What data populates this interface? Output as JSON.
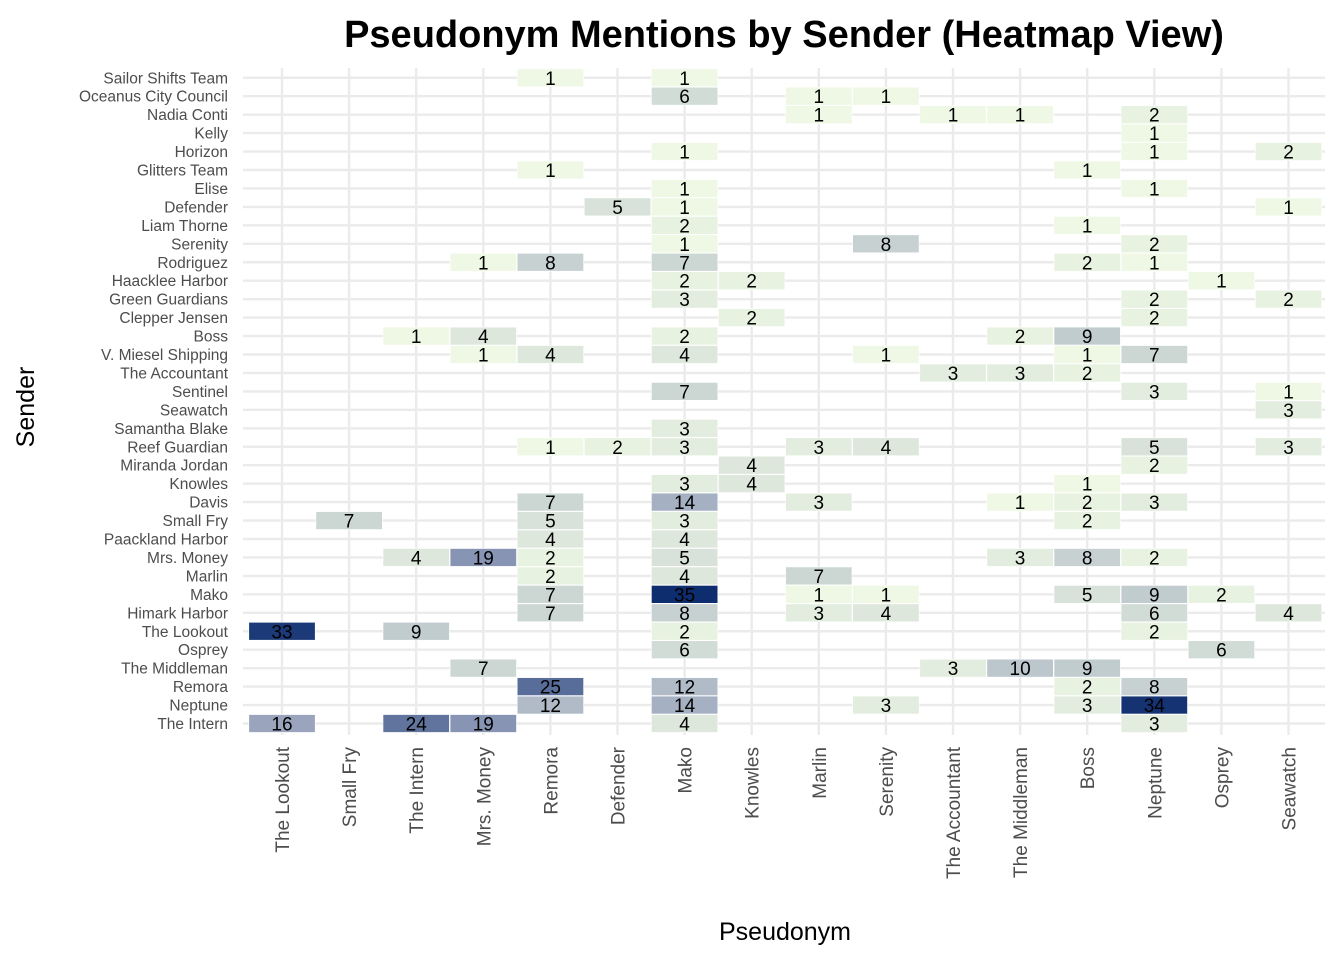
{
  "chart_data": {
    "type": "heatmap",
    "title": "Pseudonym Mentions by Sender (Heatmap View)",
    "xlabel": "Pseudonym",
    "ylabel": "Sender",
    "grid": true,
    "legend": "none",
    "x_categories": [
      "The Lookout",
      "Small Fry",
      "The Intern",
      "Mrs. Money",
      "Remora",
      "Defender",
      "Mako",
      "Knowles",
      "Marlin",
      "Serenity",
      "The Accountant",
      "The Middleman",
      "Boss",
      "Neptune",
      "Osprey",
      "Seawatch"
    ],
    "y_categories": [
      "The Intern",
      "Neptune",
      "Remora",
      "The Middleman",
      "Osprey",
      "The Lookout",
      "Himark Harbor",
      "Mako",
      "Marlin",
      "Mrs. Money",
      "Paackland Harbor",
      "Small Fry",
      "Davis",
      "Knowles",
      "Miranda Jordan",
      "Reef Guardian",
      "Samantha Blake",
      "Seawatch",
      "Sentinel",
      "The Accountant",
      "V. Miesel Shipping",
      "Boss",
      "Clepper Jensen",
      "Green Guardians",
      "Haacklee Harbor",
      "Rodriguez",
      "Serenity",
      "Liam Thorne",
      "Defender",
      "Elise",
      "Glitters Team",
      "Horizon",
      "Kelly",
      "Nadia Conti",
      "Oceanus City Council",
      "Sailor Shifts Team"
    ],
    "color_scale": {
      "low": "#eef8e4",
      "mid": "#8f9ab8",
      "high": "#0d2d6e",
      "max_value": 35
    },
    "cells": [
      {
        "sender": "The Intern",
        "pseudonym": "The Lookout",
        "value": 16
      },
      {
        "sender": "The Intern",
        "pseudonym": "The Intern",
        "value": 24
      },
      {
        "sender": "The Intern",
        "pseudonym": "Mrs. Money",
        "value": 19
      },
      {
        "sender": "The Intern",
        "pseudonym": "Mako",
        "value": 4
      },
      {
        "sender": "The Intern",
        "pseudonym": "Neptune",
        "value": 3
      },
      {
        "sender": "Neptune",
        "pseudonym": "Remora",
        "value": 12
      },
      {
        "sender": "Neptune",
        "pseudonym": "Mako",
        "value": 14
      },
      {
        "sender": "Neptune",
        "pseudonym": "Serenity",
        "value": 3
      },
      {
        "sender": "Neptune",
        "pseudonym": "Boss",
        "value": 3
      },
      {
        "sender": "Neptune",
        "pseudonym": "Neptune",
        "value": 34
      },
      {
        "sender": "Remora",
        "pseudonym": "Remora",
        "value": 25
      },
      {
        "sender": "Remora",
        "pseudonym": "Mako",
        "value": 12
      },
      {
        "sender": "Remora",
        "pseudonym": "Boss",
        "value": 2
      },
      {
        "sender": "Remora",
        "pseudonym": "Neptune",
        "value": 8
      },
      {
        "sender": "The Middleman",
        "pseudonym": "Mrs. Money",
        "value": 7
      },
      {
        "sender": "The Middleman",
        "pseudonym": "The Accountant",
        "value": 3
      },
      {
        "sender": "The Middleman",
        "pseudonym": "The Middleman",
        "value": 10
      },
      {
        "sender": "The Middleman",
        "pseudonym": "Boss",
        "value": 9
      },
      {
        "sender": "Osprey",
        "pseudonym": "Mako",
        "value": 6
      },
      {
        "sender": "Osprey",
        "pseudonym": "Osprey",
        "value": 6
      },
      {
        "sender": "The Lookout",
        "pseudonym": "The Lookout",
        "value": 33
      },
      {
        "sender": "The Lookout",
        "pseudonym": "The Intern",
        "value": 9
      },
      {
        "sender": "The Lookout",
        "pseudonym": "Mako",
        "value": 2
      },
      {
        "sender": "The Lookout",
        "pseudonym": "Neptune",
        "value": 2
      },
      {
        "sender": "Himark Harbor",
        "pseudonym": "Remora",
        "value": 7
      },
      {
        "sender": "Himark Harbor",
        "pseudonym": "Mako",
        "value": 8
      },
      {
        "sender": "Himark Harbor",
        "pseudonym": "Marlin",
        "value": 3
      },
      {
        "sender": "Himark Harbor",
        "pseudonym": "Serenity",
        "value": 4
      },
      {
        "sender": "Himark Harbor",
        "pseudonym": "Neptune",
        "value": 6
      },
      {
        "sender": "Himark Harbor",
        "pseudonym": "Seawatch",
        "value": 4
      },
      {
        "sender": "Mako",
        "pseudonym": "Remora",
        "value": 7
      },
      {
        "sender": "Mako",
        "pseudonym": "Mako",
        "value": 35
      },
      {
        "sender": "Mako",
        "pseudonym": "Marlin",
        "value": 1
      },
      {
        "sender": "Mako",
        "pseudonym": "Serenity",
        "value": 1
      },
      {
        "sender": "Mako",
        "pseudonym": "Boss",
        "value": 5
      },
      {
        "sender": "Mako",
        "pseudonym": "Neptune",
        "value": 9
      },
      {
        "sender": "Mako",
        "pseudonym": "Osprey",
        "value": 2
      },
      {
        "sender": "Marlin",
        "pseudonym": "Remora",
        "value": 2
      },
      {
        "sender": "Marlin",
        "pseudonym": "Mako",
        "value": 4
      },
      {
        "sender": "Marlin",
        "pseudonym": "Marlin",
        "value": 7
      },
      {
        "sender": "Mrs. Money",
        "pseudonym": "The Intern",
        "value": 4
      },
      {
        "sender": "Mrs. Money",
        "pseudonym": "Mrs. Money",
        "value": 19
      },
      {
        "sender": "Mrs. Money",
        "pseudonym": "Remora",
        "value": 2
      },
      {
        "sender": "Mrs. Money",
        "pseudonym": "Mako",
        "value": 5
      },
      {
        "sender": "Mrs. Money",
        "pseudonym": "The Middleman",
        "value": 3
      },
      {
        "sender": "Mrs. Money",
        "pseudonym": "Boss",
        "value": 8
      },
      {
        "sender": "Mrs. Money",
        "pseudonym": "Neptune",
        "value": 2
      },
      {
        "sender": "Paackland Harbor",
        "pseudonym": "Remora",
        "value": 4
      },
      {
        "sender": "Paackland Harbor",
        "pseudonym": "Mako",
        "value": 4
      },
      {
        "sender": "Small Fry",
        "pseudonym": "Small Fry",
        "value": 7
      },
      {
        "sender": "Small Fry",
        "pseudonym": "Remora",
        "value": 5
      },
      {
        "sender": "Small Fry",
        "pseudonym": "Mako",
        "value": 3
      },
      {
        "sender": "Small Fry",
        "pseudonym": "Boss",
        "value": 2
      },
      {
        "sender": "Davis",
        "pseudonym": "Remora",
        "value": 7
      },
      {
        "sender": "Davis",
        "pseudonym": "Mako",
        "value": 14
      },
      {
        "sender": "Davis",
        "pseudonym": "Marlin",
        "value": 3
      },
      {
        "sender": "Davis",
        "pseudonym": "The Middleman",
        "value": 1
      },
      {
        "sender": "Davis",
        "pseudonym": "Boss",
        "value": 2
      },
      {
        "sender": "Davis",
        "pseudonym": "Neptune",
        "value": 3
      },
      {
        "sender": "Knowles",
        "pseudonym": "Mako",
        "value": 3
      },
      {
        "sender": "Knowles",
        "pseudonym": "Knowles",
        "value": 4
      },
      {
        "sender": "Knowles",
        "pseudonym": "Boss",
        "value": 1
      },
      {
        "sender": "Miranda Jordan",
        "pseudonym": "Knowles",
        "value": 4
      },
      {
        "sender": "Miranda Jordan",
        "pseudonym": "Neptune",
        "value": 2
      },
      {
        "sender": "Reef Guardian",
        "pseudonym": "Remora",
        "value": 1
      },
      {
        "sender": "Reef Guardian",
        "pseudonym": "Defender",
        "value": 2
      },
      {
        "sender": "Reef Guardian",
        "pseudonym": "Mako",
        "value": 3
      },
      {
        "sender": "Reef Guardian",
        "pseudonym": "Marlin",
        "value": 3
      },
      {
        "sender": "Reef Guardian",
        "pseudonym": "Serenity",
        "value": 4
      },
      {
        "sender": "Reef Guardian",
        "pseudonym": "Neptune",
        "value": 5
      },
      {
        "sender": "Reef Guardian",
        "pseudonym": "Seawatch",
        "value": 3
      },
      {
        "sender": "Samantha Blake",
        "pseudonym": "Mako",
        "value": 3
      },
      {
        "sender": "Seawatch",
        "pseudonym": "Seawatch",
        "value": 3
      },
      {
        "sender": "Sentinel",
        "pseudonym": "Mako",
        "value": 7
      },
      {
        "sender": "Sentinel",
        "pseudonym": "Neptune",
        "value": 3
      },
      {
        "sender": "Sentinel",
        "pseudonym": "Seawatch",
        "value": 1
      },
      {
        "sender": "The Accountant",
        "pseudonym": "The Accountant",
        "value": 3
      },
      {
        "sender": "The Accountant",
        "pseudonym": "The Middleman",
        "value": 3
      },
      {
        "sender": "The Accountant",
        "pseudonym": "Boss",
        "value": 2
      },
      {
        "sender": "V. Miesel Shipping",
        "pseudonym": "Mrs. Money",
        "value": 1
      },
      {
        "sender": "V. Miesel Shipping",
        "pseudonym": "Remora",
        "value": 4
      },
      {
        "sender": "V. Miesel Shipping",
        "pseudonym": "Mako",
        "value": 4
      },
      {
        "sender": "V. Miesel Shipping",
        "pseudonym": "Serenity",
        "value": 1
      },
      {
        "sender": "V. Miesel Shipping",
        "pseudonym": "Boss",
        "value": 1
      },
      {
        "sender": "V. Miesel Shipping",
        "pseudonym": "Neptune",
        "value": 7
      },
      {
        "sender": "Boss",
        "pseudonym": "The Intern",
        "value": 1
      },
      {
        "sender": "Boss",
        "pseudonym": "Mrs. Money",
        "value": 4
      },
      {
        "sender": "Boss",
        "pseudonym": "Mako",
        "value": 2
      },
      {
        "sender": "Boss",
        "pseudonym": "The Middleman",
        "value": 2
      },
      {
        "sender": "Boss",
        "pseudonym": "Boss",
        "value": 9
      },
      {
        "sender": "Clepper Jensen",
        "pseudonym": "Knowles",
        "value": 2
      },
      {
        "sender": "Clepper Jensen",
        "pseudonym": "Neptune",
        "value": 2
      },
      {
        "sender": "Green Guardians",
        "pseudonym": "Mako",
        "value": 3
      },
      {
        "sender": "Green Guardians",
        "pseudonym": "Neptune",
        "value": 2
      },
      {
        "sender": "Green Guardians",
        "pseudonym": "Seawatch",
        "value": 2
      },
      {
        "sender": "Haacklee Harbor",
        "pseudonym": "Mako",
        "value": 2
      },
      {
        "sender": "Haacklee Harbor",
        "pseudonym": "Knowles",
        "value": 2
      },
      {
        "sender": "Haacklee Harbor",
        "pseudonym": "Osprey",
        "value": 1
      },
      {
        "sender": "Rodriguez",
        "pseudonym": "Mrs. Money",
        "value": 1
      },
      {
        "sender": "Rodriguez",
        "pseudonym": "Remora",
        "value": 8
      },
      {
        "sender": "Rodriguez",
        "pseudonym": "Mako",
        "value": 7
      },
      {
        "sender": "Rodriguez",
        "pseudonym": "Boss",
        "value": 2
      },
      {
        "sender": "Rodriguez",
        "pseudonym": "Neptune",
        "value": 1
      },
      {
        "sender": "Serenity",
        "pseudonym": "Mako",
        "value": 1
      },
      {
        "sender": "Serenity",
        "pseudonym": "Serenity",
        "value": 8
      },
      {
        "sender": "Serenity",
        "pseudonym": "Neptune",
        "value": 2
      },
      {
        "sender": "Liam Thorne",
        "pseudonym": "Mako",
        "value": 2
      },
      {
        "sender": "Liam Thorne",
        "pseudonym": "Boss",
        "value": 1
      },
      {
        "sender": "Defender",
        "pseudonym": "Defender",
        "value": 5
      },
      {
        "sender": "Defender",
        "pseudonym": "Mako",
        "value": 1
      },
      {
        "sender": "Defender",
        "pseudonym": "Seawatch",
        "value": 1
      },
      {
        "sender": "Elise",
        "pseudonym": "Mako",
        "value": 1
      },
      {
        "sender": "Elise",
        "pseudonym": "Neptune",
        "value": 1
      },
      {
        "sender": "Glitters Team",
        "pseudonym": "Remora",
        "value": 1
      },
      {
        "sender": "Glitters Team",
        "pseudonym": "Boss",
        "value": 1
      },
      {
        "sender": "Horizon",
        "pseudonym": "Mako",
        "value": 1
      },
      {
        "sender": "Horizon",
        "pseudonym": "Neptune",
        "value": 1
      },
      {
        "sender": "Horizon",
        "pseudonym": "Seawatch",
        "value": 2
      },
      {
        "sender": "Kelly",
        "pseudonym": "Neptune",
        "value": 1
      },
      {
        "sender": "Nadia Conti",
        "pseudonym": "Marlin",
        "value": 1
      },
      {
        "sender": "Nadia Conti",
        "pseudonym": "The Accountant",
        "value": 1
      },
      {
        "sender": "Nadia Conti",
        "pseudonym": "The Middleman",
        "value": 1
      },
      {
        "sender": "Nadia Conti",
        "pseudonym": "Neptune",
        "value": 2
      },
      {
        "sender": "Oceanus City Council",
        "pseudonym": "Mako",
        "value": 6
      },
      {
        "sender": "Oceanus City Council",
        "pseudonym": "Marlin",
        "value": 1
      },
      {
        "sender": "Oceanus City Council",
        "pseudonym": "Serenity",
        "value": 1
      },
      {
        "sender": "Sailor Shifts Team",
        "pseudonym": "Remora",
        "value": 1
      },
      {
        "sender": "Sailor Shifts Team",
        "pseudonym": "Mako",
        "value": 1
      }
    ]
  }
}
